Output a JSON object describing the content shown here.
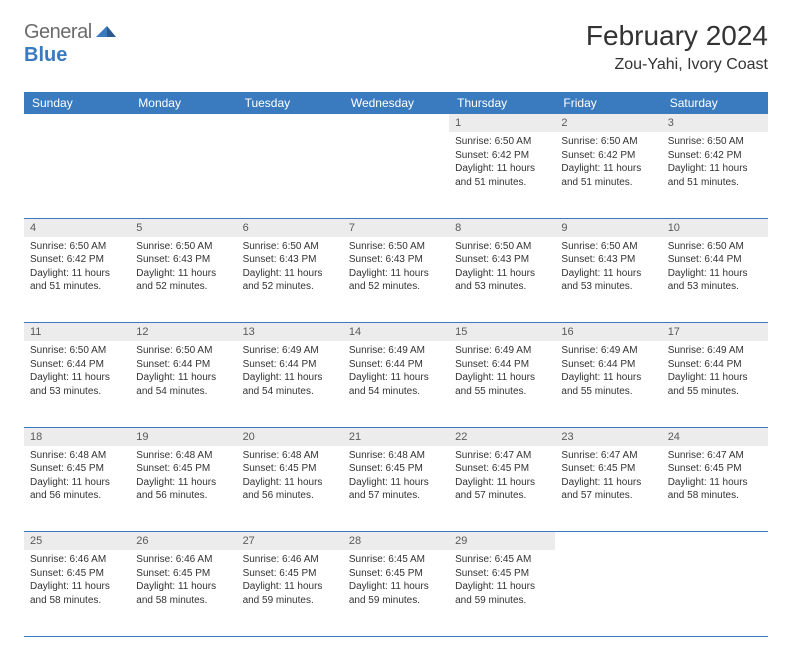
{
  "brand": {
    "part1": "General",
    "part2": "Blue"
  },
  "title": "February 2024",
  "location": "Zou-Yahi, Ivory Coast",
  "colors": {
    "header_bg": "#3a7bbf",
    "header_text": "#ffffff",
    "daynum_bg": "#ececec",
    "daynum_text": "#5a5a5a",
    "body_text": "#333333",
    "rule": "#3a7bbf",
    "page_bg": "#ffffff"
  },
  "typography": {
    "title_fontsize": 28,
    "location_fontsize": 16,
    "header_fontsize": 12,
    "cell_fontsize": 10
  },
  "weekdays": [
    "Sunday",
    "Monday",
    "Tuesday",
    "Wednesday",
    "Thursday",
    "Friday",
    "Saturday"
  ],
  "weeks": [
    [
      null,
      null,
      null,
      null,
      {
        "n": "1",
        "sunrise": "Sunrise: 6:50 AM",
        "sunset": "Sunset: 6:42 PM",
        "d1": "Daylight: 11 hours",
        "d2": "and 51 minutes."
      },
      {
        "n": "2",
        "sunrise": "Sunrise: 6:50 AM",
        "sunset": "Sunset: 6:42 PM",
        "d1": "Daylight: 11 hours",
        "d2": "and 51 minutes."
      },
      {
        "n": "3",
        "sunrise": "Sunrise: 6:50 AM",
        "sunset": "Sunset: 6:42 PM",
        "d1": "Daylight: 11 hours",
        "d2": "and 51 minutes."
      }
    ],
    [
      {
        "n": "4",
        "sunrise": "Sunrise: 6:50 AM",
        "sunset": "Sunset: 6:42 PM",
        "d1": "Daylight: 11 hours",
        "d2": "and 51 minutes."
      },
      {
        "n": "5",
        "sunrise": "Sunrise: 6:50 AM",
        "sunset": "Sunset: 6:43 PM",
        "d1": "Daylight: 11 hours",
        "d2": "and 52 minutes."
      },
      {
        "n": "6",
        "sunrise": "Sunrise: 6:50 AM",
        "sunset": "Sunset: 6:43 PM",
        "d1": "Daylight: 11 hours",
        "d2": "and 52 minutes."
      },
      {
        "n": "7",
        "sunrise": "Sunrise: 6:50 AM",
        "sunset": "Sunset: 6:43 PM",
        "d1": "Daylight: 11 hours",
        "d2": "and 52 minutes."
      },
      {
        "n": "8",
        "sunrise": "Sunrise: 6:50 AM",
        "sunset": "Sunset: 6:43 PM",
        "d1": "Daylight: 11 hours",
        "d2": "and 53 minutes."
      },
      {
        "n": "9",
        "sunrise": "Sunrise: 6:50 AM",
        "sunset": "Sunset: 6:43 PM",
        "d1": "Daylight: 11 hours",
        "d2": "and 53 minutes."
      },
      {
        "n": "10",
        "sunrise": "Sunrise: 6:50 AM",
        "sunset": "Sunset: 6:44 PM",
        "d1": "Daylight: 11 hours",
        "d2": "and 53 minutes."
      }
    ],
    [
      {
        "n": "11",
        "sunrise": "Sunrise: 6:50 AM",
        "sunset": "Sunset: 6:44 PM",
        "d1": "Daylight: 11 hours",
        "d2": "and 53 minutes."
      },
      {
        "n": "12",
        "sunrise": "Sunrise: 6:50 AM",
        "sunset": "Sunset: 6:44 PM",
        "d1": "Daylight: 11 hours",
        "d2": "and 54 minutes."
      },
      {
        "n": "13",
        "sunrise": "Sunrise: 6:49 AM",
        "sunset": "Sunset: 6:44 PM",
        "d1": "Daylight: 11 hours",
        "d2": "and 54 minutes."
      },
      {
        "n": "14",
        "sunrise": "Sunrise: 6:49 AM",
        "sunset": "Sunset: 6:44 PM",
        "d1": "Daylight: 11 hours",
        "d2": "and 54 minutes."
      },
      {
        "n": "15",
        "sunrise": "Sunrise: 6:49 AM",
        "sunset": "Sunset: 6:44 PM",
        "d1": "Daylight: 11 hours",
        "d2": "and 55 minutes."
      },
      {
        "n": "16",
        "sunrise": "Sunrise: 6:49 AM",
        "sunset": "Sunset: 6:44 PM",
        "d1": "Daylight: 11 hours",
        "d2": "and 55 minutes."
      },
      {
        "n": "17",
        "sunrise": "Sunrise: 6:49 AM",
        "sunset": "Sunset: 6:44 PM",
        "d1": "Daylight: 11 hours",
        "d2": "and 55 minutes."
      }
    ],
    [
      {
        "n": "18",
        "sunrise": "Sunrise: 6:48 AM",
        "sunset": "Sunset: 6:45 PM",
        "d1": "Daylight: 11 hours",
        "d2": "and 56 minutes."
      },
      {
        "n": "19",
        "sunrise": "Sunrise: 6:48 AM",
        "sunset": "Sunset: 6:45 PM",
        "d1": "Daylight: 11 hours",
        "d2": "and 56 minutes."
      },
      {
        "n": "20",
        "sunrise": "Sunrise: 6:48 AM",
        "sunset": "Sunset: 6:45 PM",
        "d1": "Daylight: 11 hours",
        "d2": "and 56 minutes."
      },
      {
        "n": "21",
        "sunrise": "Sunrise: 6:48 AM",
        "sunset": "Sunset: 6:45 PM",
        "d1": "Daylight: 11 hours",
        "d2": "and 57 minutes."
      },
      {
        "n": "22",
        "sunrise": "Sunrise: 6:47 AM",
        "sunset": "Sunset: 6:45 PM",
        "d1": "Daylight: 11 hours",
        "d2": "and 57 minutes."
      },
      {
        "n": "23",
        "sunrise": "Sunrise: 6:47 AM",
        "sunset": "Sunset: 6:45 PM",
        "d1": "Daylight: 11 hours",
        "d2": "and 57 minutes."
      },
      {
        "n": "24",
        "sunrise": "Sunrise: 6:47 AM",
        "sunset": "Sunset: 6:45 PM",
        "d1": "Daylight: 11 hours",
        "d2": "and 58 minutes."
      }
    ],
    [
      {
        "n": "25",
        "sunrise": "Sunrise: 6:46 AM",
        "sunset": "Sunset: 6:45 PM",
        "d1": "Daylight: 11 hours",
        "d2": "and 58 minutes."
      },
      {
        "n": "26",
        "sunrise": "Sunrise: 6:46 AM",
        "sunset": "Sunset: 6:45 PM",
        "d1": "Daylight: 11 hours",
        "d2": "and 58 minutes."
      },
      {
        "n": "27",
        "sunrise": "Sunrise: 6:46 AM",
        "sunset": "Sunset: 6:45 PM",
        "d1": "Daylight: 11 hours",
        "d2": "and 59 minutes."
      },
      {
        "n": "28",
        "sunrise": "Sunrise: 6:45 AM",
        "sunset": "Sunset: 6:45 PM",
        "d1": "Daylight: 11 hours",
        "d2": "and 59 minutes."
      },
      {
        "n": "29",
        "sunrise": "Sunrise: 6:45 AM",
        "sunset": "Sunset: 6:45 PM",
        "d1": "Daylight: 11 hours",
        "d2": "and 59 minutes."
      },
      null,
      null
    ]
  ]
}
